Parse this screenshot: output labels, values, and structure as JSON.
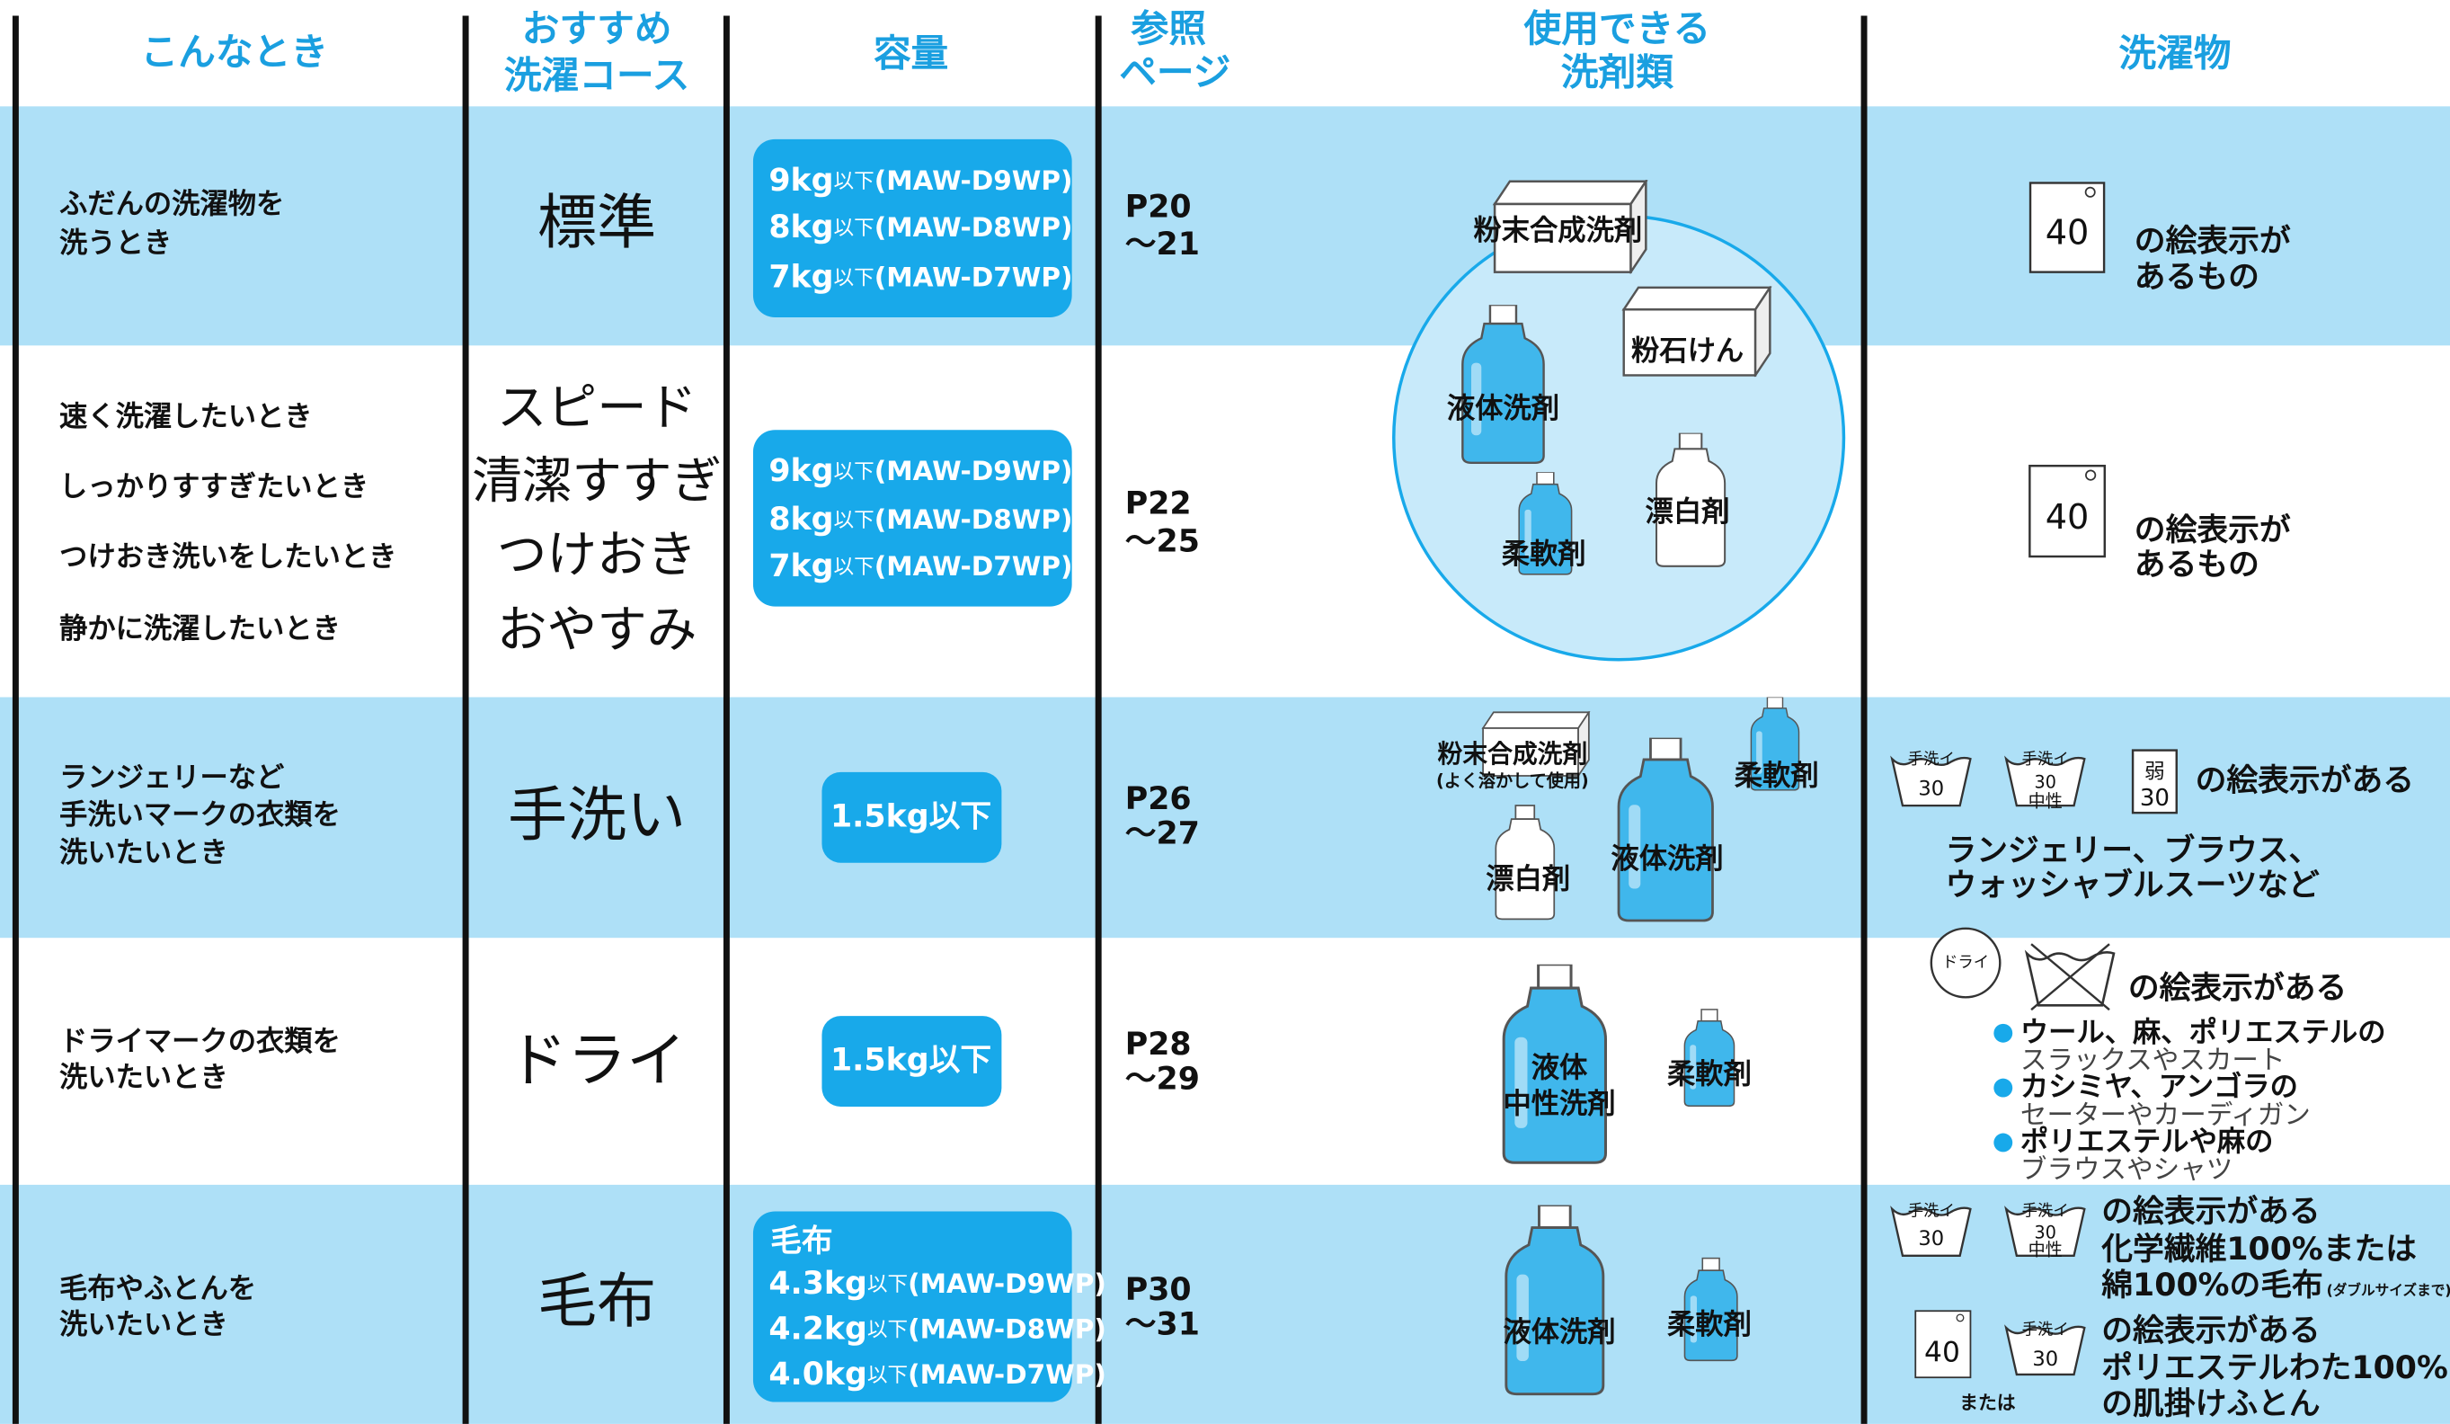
{
  "header": [
    [
      "こんなとき"
    ],
    [
      "おすすめ",
      "洗濯コース"
    ],
    [
      "容量"
    ],
    [
      "参照",
      "ページ"
    ],
    [
      "使用できる",
      "洗剤類"
    ],
    [
      "洗濯物"
    ]
  ],
  "rows": [
    {
      "situations": [
        "ふだんの洗濯物を",
        "洗うとき"
      ],
      "courses": [
        "標準"
      ],
      "capacity": [
        {
          "amount": "9kg",
          "unit": "以下",
          "model": "(MAW-D9WP)"
        },
        {
          "amount": "8kg",
          "unit": "以下",
          "model": "(MAW-D8WP)"
        },
        {
          "amount": "7kg",
          "unit": "以下",
          "model": "(MAW-D7WP)"
        }
      ],
      "pages": [
        "P20",
        "～21"
      ],
      "detergents": [
        "粉末合成洗剤",
        "粉石けん",
        "液体洗剤",
        "漂白剤",
        "柔軟剤"
      ],
      "laundry": {
        "symbols": [
          "40"
        ],
        "text": [
          "の絵表示が",
          "あるもの"
        ]
      }
    },
    {
      "situations": [
        "速く洗濯したいとき",
        "しっかりすすぎたいとき",
        "つけおき洗いをしたいとき",
        "静かに洗濯したいとき"
      ],
      "courses": [
        "スピード",
        "清潔すすぎ",
        "つけおき",
        "おやすみ"
      ],
      "capacity": [
        {
          "amount": "9kg",
          "unit": "以下",
          "model": "(MAW-D9WP)"
        },
        {
          "amount": "8kg",
          "unit": "以下",
          "model": "(MAW-D8WP)"
        },
        {
          "amount": "7kg",
          "unit": "以下",
          "model": "(MAW-D7WP)"
        }
      ],
      "pages": [
        "P22",
        "～25"
      ],
      "laundry": {
        "symbols": [
          "40"
        ],
        "text": [
          "の絵表示が",
          "あるもの"
        ]
      }
    },
    {
      "situations": [
        "ランジェリーなど",
        "手洗いマークの衣類を",
        "洗いたいとき"
      ],
      "courses": [
        "手洗い"
      ],
      "capacity": [
        "1.5kg以下"
      ],
      "pages": [
        "P26",
        "～27"
      ],
      "detergents": [
        {
          "name": "粉末合成洗剤",
          "note": "(よく溶かして使用)"
        },
        "柔軟剤",
        "液体洗剤",
        "漂白剤"
      ],
      "laundry": {
        "symbols": [
          {
            "label": "手洗イ",
            "temp": "30"
          },
          {
            "label": "手洗イ",
            "temp": "30",
            "note": "中性"
          },
          {
            "label": "弱",
            "temp": "30"
          }
        ],
        "text": [
          "の絵表示がある"
        ],
        "examples": [
          "ランジェリー、ブラウス、",
          "ウォッシャブルスーツなど"
        ]
      }
    },
    {
      "situations": [
        "ドライマークの衣類を",
        "洗いたいとき"
      ],
      "courses": [
        "ドライ"
      ],
      "capacity": [
        "1.5kg以下"
      ],
      "pages": [
        "P28",
        "～29"
      ],
      "detergents": [
        [
          "液体",
          "中性洗剤"
        ],
        "柔軟剤"
      ],
      "laundry": {
        "symbols": [
          "ドライ"
        ],
        "text": [
          "の絵表示がある"
        ],
        "items": [
          {
            "fabric": "ウール、麻、ポリエステルの",
            "garments": "スラックスやスカート"
          },
          {
            "fabric": "カシミヤ、アンゴラの",
            "garments": "セーターやカーディガン"
          },
          {
            "fabric": "ポリエステルや麻の",
            "garments": "ブラウスやシャツ"
          }
        ]
      }
    },
    {
      "situations": [
        "毛布やふとんを",
        "洗いたいとき"
      ],
      "courses": [
        "毛布"
      ],
      "capacity": {
        "label": "毛布",
        "items": [
          {
            "amount": "4.3kg",
            "unit": "以下",
            "model": "(MAW-D9WP)"
          },
          {
            "amount": "4.2kg",
            "unit": "以下",
            "model": "(MAW-D8WP)"
          },
          {
            "amount": "4.0kg",
            "unit": "以下",
            "model": "(MAW-D7WP)"
          }
        ]
      },
      "pages": [
        "P30",
        "～31"
      ],
      "detergents": [
        "液体洗剤",
        "柔軟剤"
      ],
      "laundry": {
        "groups": [
          {
            "symbols": [
              {
                "label": "手洗イ",
                "temp": "30"
              },
              {
                "label": "手洗イ",
                "temp": "30",
                "note": "中性"
              }
            ],
            "text": [
              "の絵表示がある",
              "化学繊維100%または",
              "綿100%の毛布"
            ],
            "note": "(ダブルサイズまで)"
          },
          {
            "symbols": [
              "40",
              {
                "label": "手洗イ",
                "temp": "30"
              }
            ],
            "connector": "または",
            "text": [
              "の絵表示がある",
              "ポリエステルわた100%",
              "の肌掛けふとん"
            ]
          }
        ]
      }
    }
  ]
}
